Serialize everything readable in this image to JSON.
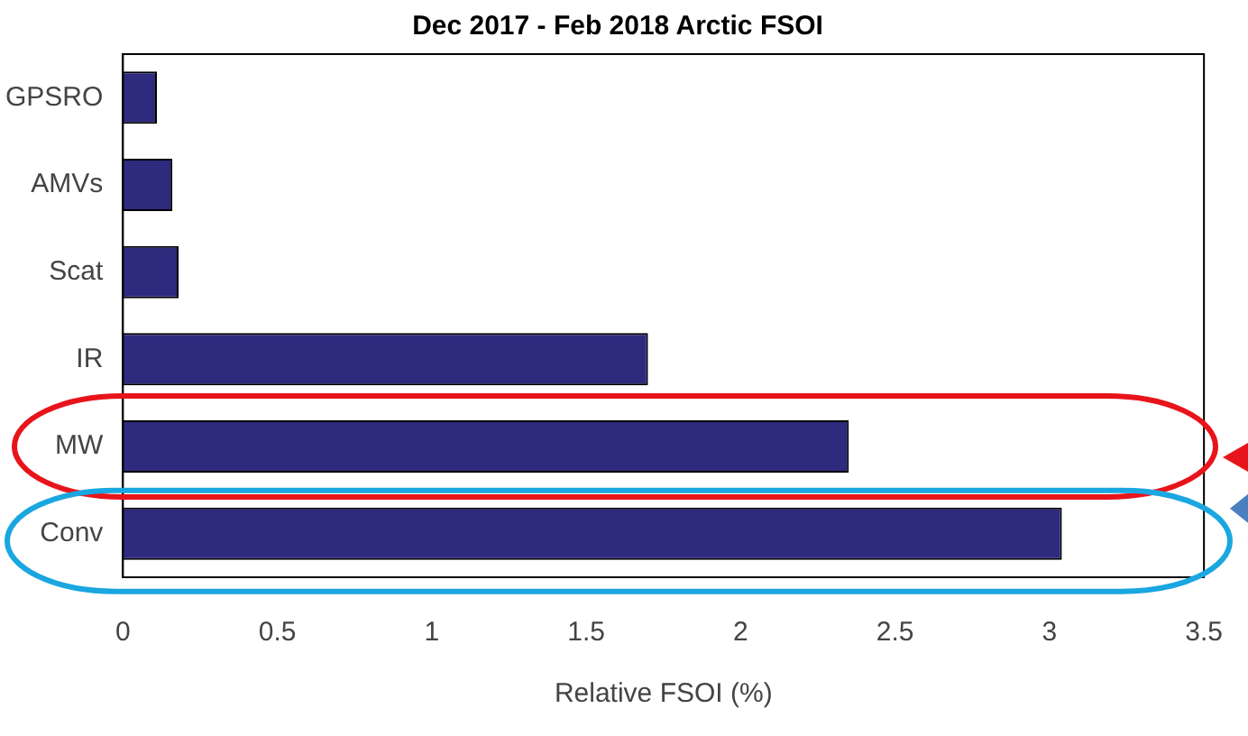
{
  "chart_data": {
    "type": "bar",
    "orientation": "horizontal",
    "title": "Dec 2017 - Feb 2018 Arctic FSOI",
    "xlabel": "Relative FSOI (%)",
    "categories": [
      "GPSRO",
      "AMVs",
      "Scat",
      "IR",
      "MW",
      "Conv"
    ],
    "values": [
      0.11,
      0.16,
      0.18,
      1.7,
      2.35,
      3.04
    ],
    "color": "#2e2a7e",
    "xlim": [
      0,
      3.5
    ],
    "xticks": [
      0,
      0.5,
      1,
      1.5,
      2,
      2.5,
      3,
      3.5
    ],
    "grid": false,
    "legend": false
  }
}
